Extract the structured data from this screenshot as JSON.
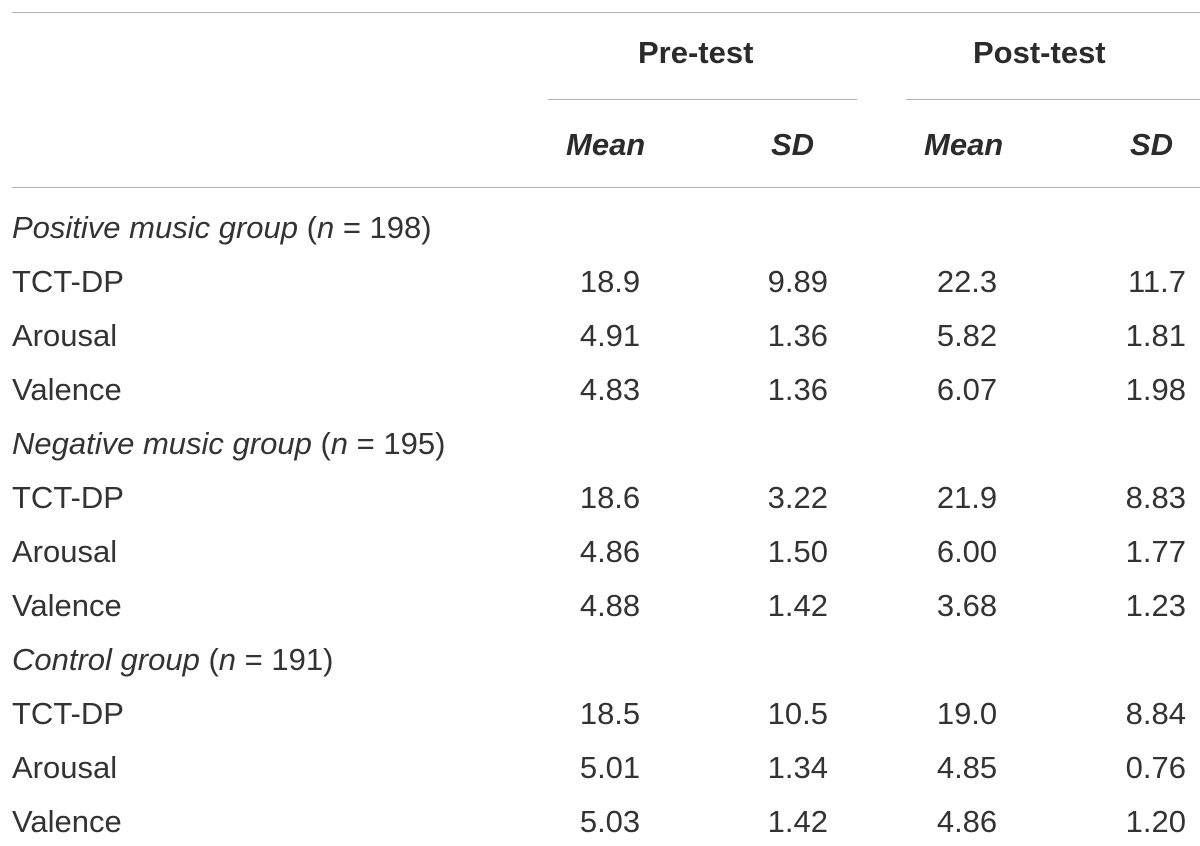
{
  "table": {
    "header": {
      "group_labels": [
        "Pre-test",
        "Post-test"
      ],
      "sub_labels": [
        "Mean",
        "SD",
        "Mean",
        "SD"
      ]
    },
    "sections": [
      {
        "label_italic": "Positive music group",
        "label_open": " (",
        "label_n": "n",
        "label_rest": " = 198)",
        "rows": [
          {
            "name": "TCT-DP",
            "values": [
              "18.9",
              "9.89",
              "22.3",
              "11.7"
            ]
          },
          {
            "name": "Arousal",
            "values": [
              "4.91",
              "1.36",
              "5.82",
              "1.81"
            ]
          },
          {
            "name": "Valence",
            "values": [
              "4.83",
              "1.36",
              "6.07",
              "1.98"
            ]
          }
        ]
      },
      {
        "label_italic": "Negative music group",
        "label_open": " (",
        "label_n": "n",
        "label_rest": " = 195)",
        "rows": [
          {
            "name": "TCT-DP",
            "values": [
              "18.6",
              "3.22",
              "21.9",
              "8.83"
            ]
          },
          {
            "name": "Arousal",
            "values": [
              "4.86",
              "1.50",
              "6.00",
              "1.77"
            ]
          },
          {
            "name": "Valence",
            "values": [
              "4.88",
              "1.42",
              "3.68",
              "1.23"
            ]
          }
        ]
      },
      {
        "label_italic": "Control group",
        "label_open": " (",
        "label_n": "n",
        "label_rest": " = 191)",
        "rows": [
          {
            "name": "TCT-DP",
            "values": [
              "18.5",
              "10.5",
              "19.0",
              "8.84"
            ]
          },
          {
            "name": "Arousal",
            "values": [
              "5.01",
              "1.34",
              "4.85",
              "0.76"
            ]
          },
          {
            "name": "Valence",
            "values": [
              "5.03",
              "1.42",
              "4.86",
              "1.20"
            ]
          }
        ]
      }
    ]
  }
}
